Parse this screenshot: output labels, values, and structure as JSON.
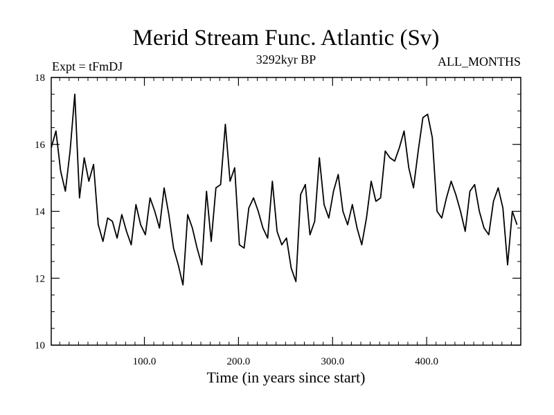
{
  "chart_data": {
    "type": "line",
    "title": "Merid Stream Func. Atlantic (Sv)",
    "subtitle_left": "Expt = tFmDJ",
    "subtitle_center": "3292kyr BP",
    "subtitle_right": "ALL_MONTHS",
    "xlabel": "Time (in years since start)",
    "ylabel": "",
    "xlim": [
      1,
      500
    ],
    "ylim": [
      10,
      18
    ],
    "x_ticks": [
      100,
      200,
      300,
      400
    ],
    "x_tick_labels": [
      "100.0",
      "200.0",
      "300.0",
      "400.0"
    ],
    "y_ticks": [
      10,
      12,
      14,
      16,
      18
    ],
    "y_tick_labels": [
      "10",
      "12",
      "14",
      "16",
      "18"
    ],
    "series": [
      {
        "name": "Merid Stream Func. Atlantic",
        "color": "#000000",
        "x_start": 1,
        "x_step": 5,
        "values": [
          15.9,
          16.4,
          15.2,
          14.6,
          15.8,
          17.5,
          14.4,
          15.6,
          14.9,
          15.4,
          13.6,
          13.1,
          13.8,
          13.7,
          13.2,
          13.9,
          13.4,
          13.0,
          14.2,
          13.6,
          13.3,
          14.4,
          14.0,
          13.5,
          14.7,
          13.9,
          12.9,
          12.4,
          11.8,
          13.9,
          13.5,
          12.9,
          12.4,
          14.6,
          13.1,
          14.7,
          14.8,
          16.6,
          14.9,
          15.3,
          13.0,
          12.9,
          14.1,
          14.4,
          14.0,
          13.5,
          13.2,
          14.9,
          13.4,
          13.0,
          13.2,
          12.3,
          11.9,
          14.5,
          14.8,
          13.3,
          13.7,
          15.6,
          14.2,
          13.8,
          14.6,
          15.1,
          14.0,
          13.6,
          14.2,
          13.5,
          13.0,
          13.8,
          14.9,
          14.3,
          14.4,
          15.8,
          15.6,
          15.5,
          15.9,
          16.4,
          15.3,
          14.7,
          15.8,
          16.8,
          16.9,
          16.2,
          14.0,
          13.8,
          14.4,
          14.9,
          14.5,
          14.0,
          13.4,
          14.6,
          14.8,
          14.0,
          13.5,
          13.3,
          14.3,
          14.7,
          14.1,
          12.4,
          14.0,
          13.6
        ]
      }
    ]
  }
}
